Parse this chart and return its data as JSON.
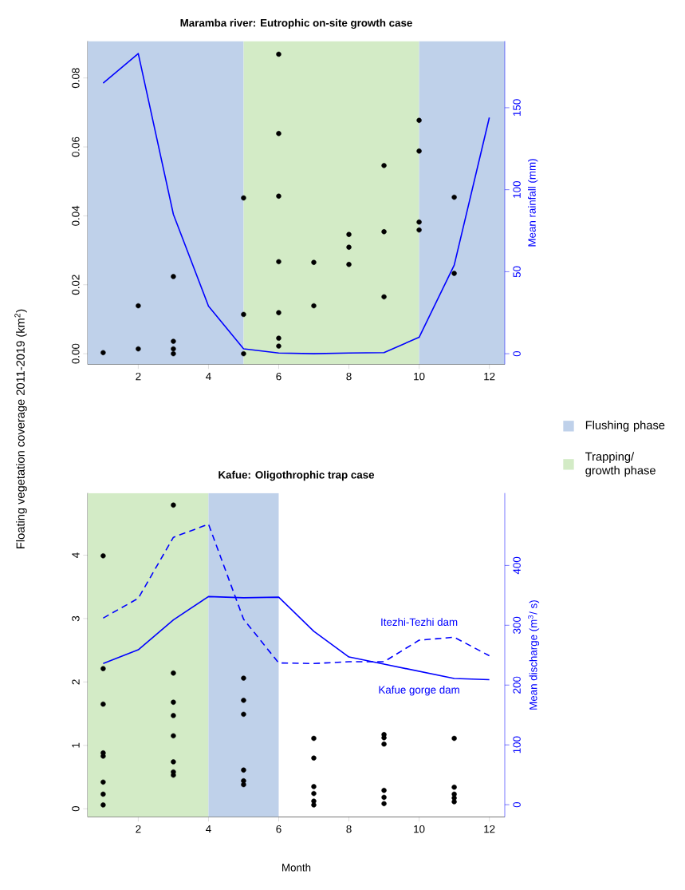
{
  "chart_data": [
    {
      "type": "scatter",
      "title": "Maramba river: Eutrophic on-site growth case",
      "y2label": "Mean rainfall (mm)",
      "legend": "right",
      "xlim": [
        0.56,
        12.44
      ],
      "xticks": [
        2,
        4,
        6,
        8,
        10,
        12
      ],
      "ylim": [
        -0.0031,
        0.0907
      ],
      "yticks": [
        {
          "value": 0,
          "label": "0.00"
        },
        {
          "value": 0.02,
          "label": "0.02"
        },
        {
          "value": 0.04,
          "label": "0.04"
        },
        {
          "value": 0.06,
          "label": "0.06"
        },
        {
          "value": 0.08,
          "label": "0.08"
        }
      ],
      "y2lim": [
        -6.5,
        190.6
      ],
      "y2ticks": [
        0,
        50,
        100,
        150
      ],
      "bands": [
        {
          "axis": "x",
          "from": 0.56,
          "to": 5,
          "label": "Flushing phase",
          "color": "#bfd1ea"
        },
        {
          "axis": "x",
          "from": 5,
          "to": 10,
          "label": "Trapping/ growth phase",
          "color": "#d3ebc6"
        },
        {
          "axis": "x",
          "from": 10,
          "to": 12.44,
          "color": "#bfd1ea"
        }
      ],
      "series": [
        {
          "marker": "circle",
          "color": "#000000",
          "x": [
            1,
            2,
            2,
            3,
            3,
            3,
            3,
            5,
            5,
            5,
            6,
            6,
            6,
            6,
            6,
            6,
            6,
            7,
            7,
            8,
            8,
            8,
            9,
            9,
            9,
            10,
            10,
            10,
            10,
            11,
            11
          ],
          "values": [
            0.0003,
            0.0014,
            0.0139,
            0.0224,
            0.0036,
            0.0014,
            0.0,
            0.0452,
            0.0114,
            0.0,
            0.0869,
            0.0639,
            0.0457,
            0.0267,
            0.0119,
            0.0045,
            0.0022,
            0.0265,
            0.0139,
            0.0346,
            0.0309,
            0.0259,
            0.0546,
            0.0354,
            0.0165,
            0.0677,
            0.0588,
            0.0382,
            0.0359,
            0.0454,
            0.0233
          ]
        },
        {
          "type": "line",
          "axis": "y2",
          "color": "#0000ff",
          "line_style": "solid",
          "x": [
            1,
            2,
            3,
            4,
            5,
            6,
            7,
            8,
            9,
            10,
            11,
            12
          ],
          "values": [
            165,
            183,
            85,
            29,
            3,
            0.4,
            0,
            0.4,
            0.7,
            10,
            54,
            144
          ]
        }
      ]
    },
    {
      "type": "scatter",
      "title": "Kafue: Oligothrophic trap case",
      "xlabel": "Month",
      "ylabel": "Floating vegetation coverage 2011-2019 (km$^{2}$)",
      "y2label": "Mean discharge (m$^{3}$/ s)",
      "xlim": [
        0.56,
        12.44
      ],
      "xticks": [
        2,
        4,
        6,
        8,
        10,
        12
      ],
      "ylim": [
        -0.13,
        4.98
      ],
      "yticks": [
        0,
        1,
        2,
        3,
        4
      ],
      "y2lim": [
        -20.5,
        521
      ],
      "y2ticks": [
        0,
        100,
        200,
        300,
        400
      ],
      "bands": [
        {
          "axis": "x",
          "from": 0.56,
          "to": 4,
          "color": "#d3ebc6"
        },
        {
          "axis": "x",
          "from": 4,
          "to": 6,
          "color": "#bfd1ea"
        }
      ],
      "series": [
        {
          "marker": "circle",
          "color": "#000000",
          "x": [
            1,
            1,
            1,
            1,
            1,
            1,
            1,
            1,
            3,
            3,
            3,
            3,
            3,
            3,
            3,
            3,
            5,
            5,
            5,
            5,
            5,
            5,
            7,
            7,
            7,
            7,
            7,
            7,
            9,
            9,
            9,
            9,
            9,
            9,
            11,
            11,
            11,
            11,
            11
          ],
          "values": [
            3.99,
            2.21,
            1.65,
            0.88,
            0.83,
            0.42,
            0.23,
            0.06,
            4.79,
            2.14,
            1.68,
            1.47,
            1.15,
            0.74,
            0.58,
            0.53,
            2.06,
            1.71,
            1.49,
            0.61,
            0.44,
            0.38,
            1.11,
            0.8,
            0.35,
            0.24,
            0.12,
            0.06,
            1.17,
            1.12,
            1.02,
            0.29,
            0.18,
            0.08,
            1.11,
            0.34,
            0.23,
            0.17,
            0.11
          ]
        },
        {
          "type": "line",
          "axis": "y2",
          "name": "Kafue gorge dam",
          "color": "#0000ff",
          "line_style": "solid",
          "x": [
            1,
            2,
            3,
            4,
            5,
            6,
            7,
            8,
            9,
            10,
            11,
            12
          ],
          "values": [
            236,
            259,
            309,
            348,
            346,
            347,
            290,
            247,
            235,
            223,
            211,
            209
          ]
        },
        {
          "type": "line",
          "axis": "y2",
          "name": "Itezhi-Tezhi dam",
          "color": "#0000ff",
          "line_style": "dashed",
          "x": [
            1,
            2,
            3,
            4,
            5,
            6,
            7,
            8,
            9,
            10,
            11,
            12
          ],
          "values": [
            312,
            345,
            447,
            469,
            310,
            237,
            236,
            239,
            239,
            275,
            280,
            249
          ]
        }
      ]
    }
  ]
}
